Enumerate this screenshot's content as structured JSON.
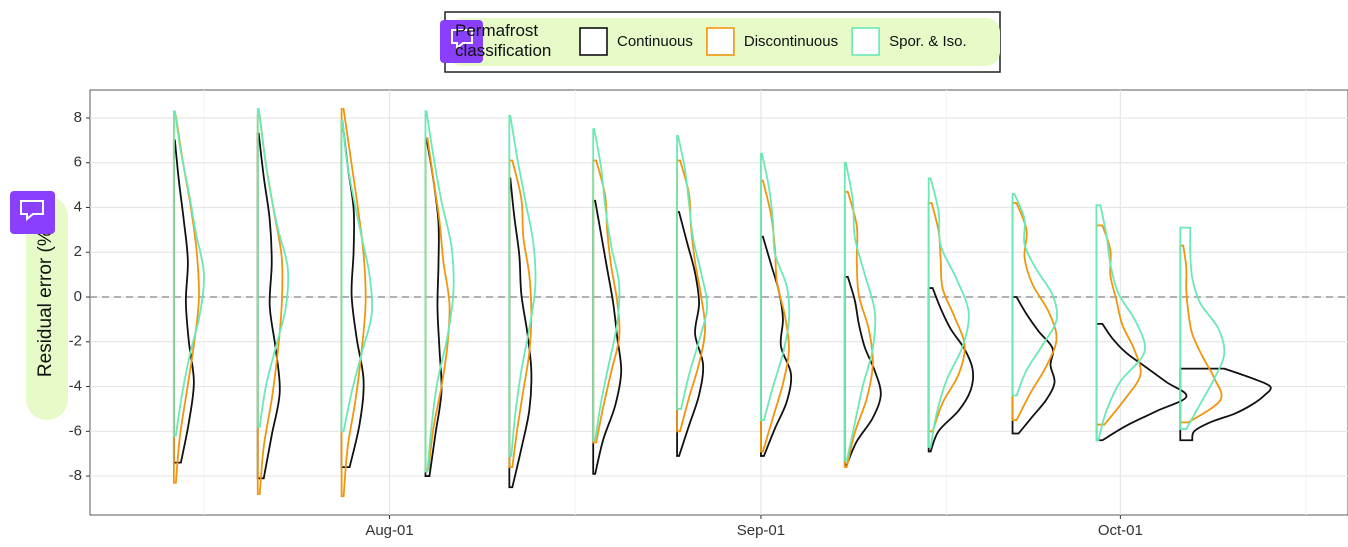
{
  "chart_data": {
    "type": "half-violin",
    "y_label": "Residual error (%)",
    "legend_title": "Permafrost classification",
    "x": [
      "Jul-14",
      "Jul-21",
      "Jul-28",
      "Aug-04",
      "Aug-11",
      "Aug-18",
      "Aug-25",
      "Sep-01",
      "Sep-08",
      "Sep-15",
      "Sep-22",
      "Sep-29",
      "Oct-06"
    ],
    "xlim": [
      "Jul-07",
      "Oct-20"
    ],
    "xticks": [
      "Aug-01",
      "Sep-01",
      "Oct-01"
    ],
    "ylim": [
      -9.74,
      9.25
    ],
    "yticks": [
      -8,
      -6,
      -4,
      -2,
      0,
      2,
      4,
      6,
      8
    ],
    "reference_line": 0,
    "grid": true,
    "legend": "top",
    "series": [
      {
        "name": "Continuous",
        "color": "#111111",
        "violins": [
          {
            "ymin": -7.4,
            "ymax": 7.0,
            "density": [
              7,
              15,
              20,
              15,
              12,
              14,
              10,
              5,
              1
            ]
          },
          {
            "ymin": -8.1,
            "ymax": 7.3,
            "density": [
              6,
              14,
              22,
              18,
              12,
              14,
              12,
              6,
              1
            ]
          },
          {
            "ymin": -7.6,
            "ymax": 7.8,
            "density": [
              8,
              18,
              22,
              15,
              10,
              12,
              12,
              6,
              1
            ]
          },
          {
            "ymin": -8.0,
            "ymax": 7.1,
            "density": [
              4,
              10,
              16,
              14,
              12,
              13,
              13,
              8,
              1
            ]
          },
          {
            "ymin": -8.5,
            "ymax": 5.3,
            "density": [
              3,
              12,
              20,
              22,
              18,
              12,
              10,
              5,
              1
            ]
          },
          {
            "ymin": -7.9,
            "ymax": 4.3,
            "density": [
              2,
              10,
              22,
              28,
              24,
              20,
              14,
              8,
              2
            ]
          },
          {
            "ymin": -7.1,
            "ymax": 3.8,
            "density": [
              2,
              12,
              22,
              26,
              18,
              22,
              18,
              10,
              2
            ]
          },
          {
            "ymin": -7.1,
            "ymax": 2.7,
            "density": [
              3,
              14,
              26,
              30,
              20,
              22,
              18,
              10,
              2
            ]
          },
          {
            "ymin": -7.5,
            "ymax": 0.9,
            "density": [
              2,
              12,
              28,
              36,
              30,
              20,
              14,
              10,
              3
            ]
          },
          {
            "ymin": -6.9,
            "ymax": 0.4,
            "density": [
              2,
              10,
              30,
              42,
              44,
              36,
              22,
              12,
              4
            ]
          },
          {
            "ymin": -6.1,
            "ymax": 0.0,
            "density": [
              6,
              20,
              34,
              42,
              38,
              40,
              26,
              14,
              4
            ]
          },
          {
            "ymin": -6.4,
            "ymax": -1.2,
            "density": [
              6,
              30,
              60,
              90,
              70,
              50,
              30,
              16,
              6
            ]
          },
          {
            "ymin": -6.4,
            "ymax": -3.2,
            "density": [
              12,
              14,
              30,
              55,
              72,
              84,
              90,
              70,
              44
            ]
          }
        ]
      },
      {
        "name": "Discontinuous",
        "color": "#f0950f",
        "violins": [
          {
            "ymin": -8.3,
            "ymax": 8.1,
            "density": [
              2,
              6,
              13,
              20,
              25,
              23,
              17,
              9,
              2
            ]
          },
          {
            "ymin": -8.8,
            "ymax": 8.1,
            "density": [
              2,
              6,
              14,
              20,
              24,
              24,
              16,
              8,
              2
            ]
          },
          {
            "ymin": -8.9,
            "ymax": 8.4,
            "density": [
              2,
              6,
              14,
              20,
              24,
              22,
              16,
              9,
              2
            ]
          },
          {
            "ymin": -7.7,
            "ymax": 7.1,
            "density": [
              3,
              8,
              16,
              22,
              24,
              18,
              14,
              8,
              2
            ]
          },
          {
            "ymin": -7.6,
            "ymax": 6.1,
            "density": [
              3,
              8,
              14,
              20,
              22,
              20,
              14,
              12,
              3
            ]
          },
          {
            "ymin": -6.5,
            "ymax": 6.1,
            "density": [
              3,
              10,
              18,
              26,
              24,
              18,
              14,
              12,
              3
            ]
          },
          {
            "ymin": -6.0,
            "ymax": 6.1,
            "density": [
              3,
              12,
              22,
              28,
              24,
              18,
              14,
              12,
              3
            ]
          },
          {
            "ymin": -6.9,
            "ymax": 5.2,
            "density": [
              2,
              12,
              22,
              28,
              24,
              16,
              14,
              10,
              2
            ]
          },
          {
            "ymin": -7.6,
            "ymax": 4.7,
            "density": [
              2,
              10,
              22,
              28,
              24,
              14,
              12,
              12,
              3
            ]
          },
          {
            "ymin": -6.0,
            "ymax": 4.2,
            "density": [
              4,
              14,
              30,
              36,
              26,
              14,
              12,
              10,
              3
            ]
          },
          {
            "ymin": -5.5,
            "ymax": 4.2,
            "density": [
              4,
              18,
              34,
              44,
              36,
              20,
              12,
              14,
              4
            ]
          },
          {
            "ymin": -5.7,
            "ymax": 3.2,
            "density": [
              8,
              28,
              44,
              38,
              26,
              20,
              14,
              14,
              6
            ]
          },
          {
            "ymin": -5.6,
            "ymax": 2.3,
            "density": [
              8,
              40,
              34,
              22,
              12,
              8,
              6,
              6,
              3
            ]
          }
        ]
      },
      {
        "name": "Spor. & Iso.",
        "color": "#6be8b4",
        "violins": [
          {
            "ymin": -6.2,
            "ymax": 8.3,
            "density": [
              2,
              8,
              16,
              26,
              30,
              22,
              15,
              7,
              1
            ]
          },
          {
            "ymin": -5.8,
            "ymax": 8.4,
            "density": [
              2,
              8,
              18,
              28,
              30,
              20,
              12,
              6,
              1
            ]
          },
          {
            "ymin": -6.0,
            "ymax": 7.9,
            "density": [
              2,
              10,
              20,
              30,
              28,
              20,
              12,
              5,
              1
            ]
          },
          {
            "ymin": -7.8,
            "ymax": 8.3,
            "density": [
              2,
              6,
              12,
              22,
              28,
              26,
              16,
              8,
              1
            ]
          },
          {
            "ymin": -7.1,
            "ymax": 8.1,
            "density": [
              2,
              6,
              12,
              20,
              26,
              24,
              16,
              8,
              1
            ]
          },
          {
            "ymin": -6.4,
            "ymax": 7.5,
            "density": [
              2,
              8,
              16,
              24,
              26,
              18,
              12,
              8,
              1
            ]
          },
          {
            "ymin": -5.0,
            "ymax": 7.2,
            "density": [
              4,
              12,
              22,
              30,
              24,
              16,
              12,
              8,
              1
            ]
          },
          {
            "ymin": -5.5,
            "ymax": 6.4,
            "density": [
              3,
              12,
              22,
              28,
              26,
              14,
              12,
              8,
              1
            ]
          },
          {
            "ymin": -7.3,
            "ymax": 6.0,
            "density": [
              2,
              10,
              18,
              28,
              30,
              20,
              10,
              8,
              1
            ]
          },
          {
            "ymin": -6.7,
            "ymax": 5.3,
            "density": [
              2,
              8,
              18,
              34,
              40,
              28,
              12,
              10,
              2
            ]
          },
          {
            "ymin": -4.4,
            "ymax": 4.6,
            "density": [
              4,
              14,
              30,
              44,
              40,
              24,
              12,
              12,
              2
            ]
          },
          {
            "ymin": -6.4,
            "ymax": 4.1,
            "density": [
              2,
              10,
              24,
              48,
              40,
              22,
              14,
              10,
              4
            ]
          },
          {
            "ymin": -5.9,
            "ymax": 3.1,
            "density": [
              6,
              20,
              34,
              44,
              38,
              20,
              12,
              10,
              10
            ]
          }
        ]
      }
    ]
  }
}
